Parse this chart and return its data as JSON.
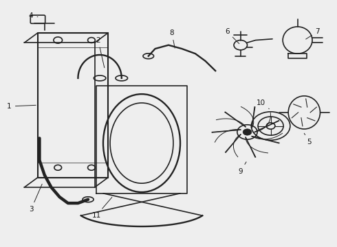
{
  "background_color": "#eeeeee",
  "line_color": "#222222",
  "line_width": 1.2,
  "label_color": "#111111",
  "label_fontsize": 7.5,
  "parts": {
    "radiator": {
      "label": "1"
    },
    "upper_hose": {
      "label": "2"
    },
    "lower_hose": {
      "label": "3"
    },
    "cap": {
      "label": "4"
    },
    "water_pump": {
      "label": "5"
    },
    "sensor": {
      "label": "6"
    },
    "thermostat_housing": {
      "label": "7"
    },
    "outlet_pipe": {
      "label": "8"
    },
    "fan_blade": {
      "label": "9"
    },
    "fan_clutch": {
      "label": "10"
    },
    "fan_shroud": {
      "label": "11"
    }
  }
}
